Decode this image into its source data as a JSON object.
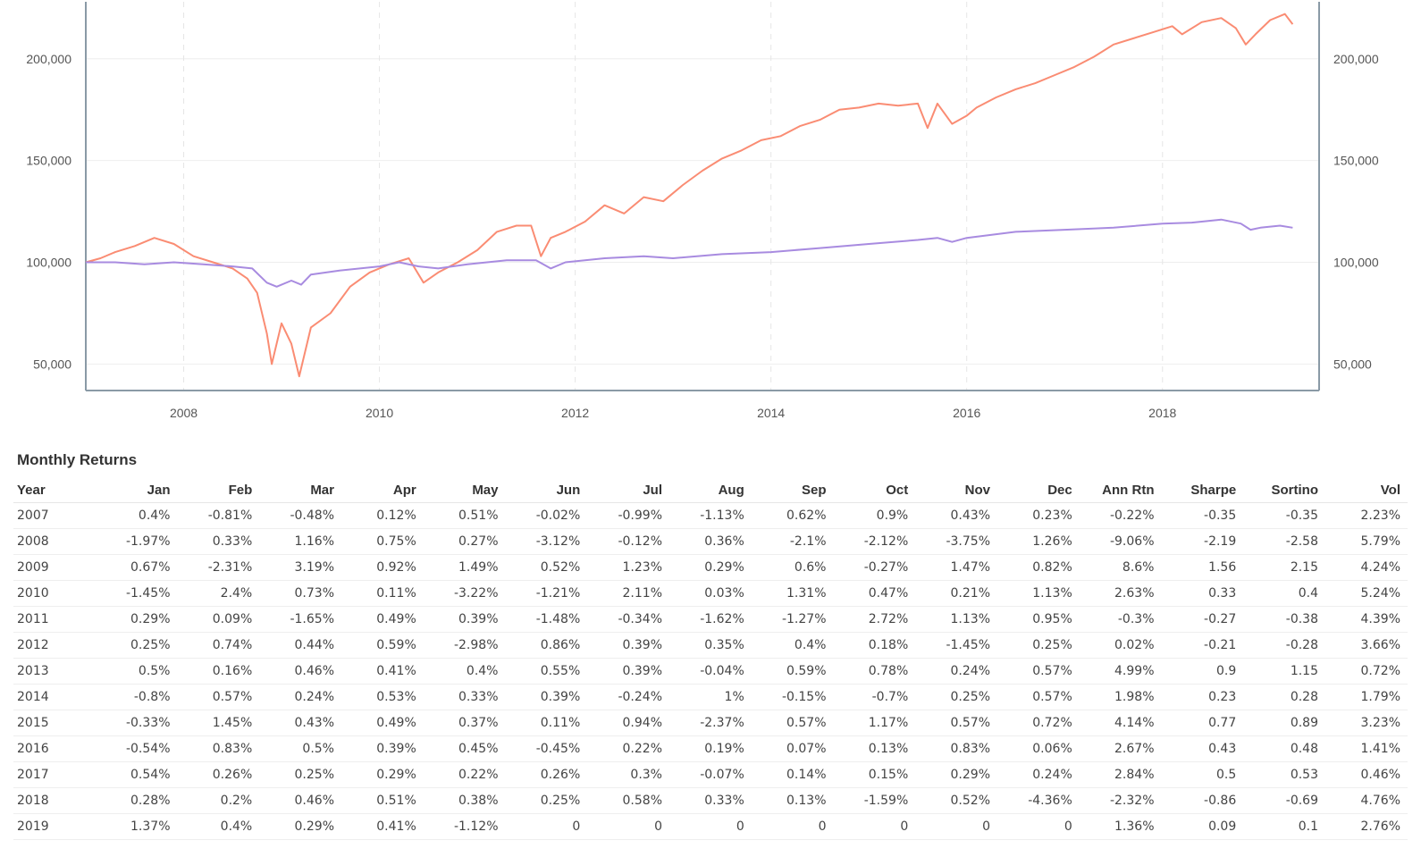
{
  "chart_data": {
    "type": "line",
    "x_ticks": [
      "2008",
      "2010",
      "2012",
      "2014",
      "2016",
      "2018"
    ],
    "y_ticks_left": [
      "50,000",
      "100,000",
      "150,000",
      "200,000"
    ],
    "y_ticks_right": [
      "50,000",
      "100,000",
      "150,000",
      "200,000"
    ],
    "xlim": [
      2007.0,
      2019.6
    ],
    "ylim": [
      37000,
      228000
    ],
    "grid": true,
    "series": [
      {
        "color": "#fa8c73",
        "x": [
          2007.0,
          2007.15,
          2007.3,
          2007.5,
          2007.7,
          2007.9,
          2008.1,
          2008.3,
          2008.5,
          2008.65,
          2008.75,
          2008.85,
          2008.9,
          2009.0,
          2009.1,
          2009.18,
          2009.3,
          2009.5,
          2009.7,
          2009.9,
          2010.1,
          2010.3,
          2010.45,
          2010.6,
          2010.8,
          2011.0,
          2011.2,
          2011.4,
          2011.55,
          2011.65,
          2011.75,
          2011.9,
          2012.1,
          2012.3,
          2012.5,
          2012.7,
          2012.9,
          2013.1,
          2013.3,
          2013.5,
          2013.7,
          2013.9,
          2014.1,
          2014.3,
          2014.5,
          2014.7,
          2014.9,
          2015.1,
          2015.3,
          2015.5,
          2015.6,
          2015.7,
          2015.85,
          2016.0,
          2016.1,
          2016.3,
          2016.5,
          2016.7,
          2016.9,
          2017.1,
          2017.3,
          2017.5,
          2017.7,
          2017.9,
          2018.1,
          2018.2,
          2018.4,
          2018.6,
          2018.75,
          2018.85,
          2018.95,
          2019.1,
          2019.25,
          2019.33
        ],
        "y": [
          100000,
          102000,
          105000,
          108000,
          112000,
          109000,
          103000,
          100000,
          97000,
          92000,
          85000,
          65000,
          50000,
          70000,
          60000,
          44000,
          68000,
          75000,
          88000,
          95000,
          99000,
          102000,
          90000,
          95000,
          100000,
          106000,
          115000,
          118000,
          118000,
          103000,
          112000,
          115000,
          120000,
          128000,
          124000,
          132000,
          130000,
          138000,
          145000,
          151000,
          155000,
          160000,
          162000,
          167000,
          170000,
          175000,
          176000,
          178000,
          177000,
          178000,
          166000,
          178000,
          168000,
          172000,
          176000,
          181000,
          185000,
          188000,
          192000,
          196000,
          201000,
          207000,
          210000,
          213000,
          216000,
          212000,
          218000,
          220000,
          215000,
          207000,
          212000,
          219000,
          222000,
          217000
        ]
      },
      {
        "color": "#a88be0",
        "x": [
          2007.0,
          2007.3,
          2007.6,
          2007.9,
          2008.2,
          2008.5,
          2008.7,
          2008.85,
          2008.95,
          2009.1,
          2009.2,
          2009.3,
          2009.6,
          2010.0,
          2010.2,
          2010.4,
          2010.6,
          2010.9,
          2011.3,
          2011.6,
          2011.75,
          2011.9,
          2012.3,
          2012.7,
          2013.0,
          2013.5,
          2014.0,
          2014.5,
          2015.0,
          2015.5,
          2015.7,
          2015.85,
          2016.0,
          2016.5,
          2017.0,
          2017.5,
          2018.0,
          2018.3,
          2018.6,
          2018.8,
          2018.9,
          2019.0,
          2019.2,
          2019.33
        ],
        "y": [
          100000,
          100000,
          99000,
          100000,
          99000,
          98000,
          97000,
          90000,
          88000,
          91000,
          89000,
          94000,
          96000,
          98000,
          100000,
          98000,
          97000,
          99000,
          101000,
          101000,
          97000,
          100000,
          102000,
          103000,
          102000,
          104000,
          105000,
          107000,
          109000,
          111000,
          112000,
          110000,
          112000,
          115000,
          116000,
          117000,
          119000,
          119500,
          121000,
          119000,
          116000,
          117000,
          118000,
          117000
        ]
      }
    ]
  },
  "returns": {
    "title": "Monthly Returns",
    "columns": [
      "Year",
      "Jan",
      "Feb",
      "Mar",
      "Apr",
      "May",
      "Jun",
      "Jul",
      "Aug",
      "Sep",
      "Oct",
      "Nov",
      "Dec",
      "Ann Rtn",
      "Sharpe",
      "Sortino",
      "Vol"
    ],
    "rows": [
      [
        "2007",
        "0.4%",
        "-0.81%",
        "-0.48%",
        "0.12%",
        "0.51%",
        "-0.02%",
        "-0.99%",
        "-1.13%",
        "0.62%",
        "0.9%",
        "0.43%",
        "0.23%",
        "-0.22%",
        "-0.35",
        "-0.35",
        "2.23%"
      ],
      [
        "2008",
        "-1.97%",
        "0.33%",
        "1.16%",
        "0.75%",
        "0.27%",
        "-3.12%",
        "-0.12%",
        "0.36%",
        "-2.1%",
        "-2.12%",
        "-3.75%",
        "1.26%",
        "-9.06%",
        "-2.19",
        "-2.58",
        "5.79%"
      ],
      [
        "2009",
        "0.67%",
        "-2.31%",
        "3.19%",
        "0.92%",
        "1.49%",
        "0.52%",
        "1.23%",
        "0.29%",
        "0.6%",
        "-0.27%",
        "1.47%",
        "0.82%",
        "8.6%",
        "1.56",
        "2.15",
        "4.24%"
      ],
      [
        "2010",
        "-1.45%",
        "2.4%",
        "0.73%",
        "0.11%",
        "-3.22%",
        "-1.21%",
        "2.11%",
        "0.03%",
        "1.31%",
        "0.47%",
        "0.21%",
        "1.13%",
        "2.63%",
        "0.33",
        "0.4",
        "5.24%"
      ],
      [
        "2011",
        "0.29%",
        "0.09%",
        "-1.65%",
        "0.49%",
        "0.39%",
        "-1.48%",
        "-0.34%",
        "-1.62%",
        "-1.27%",
        "2.72%",
        "1.13%",
        "0.95%",
        "-0.3%",
        "-0.27",
        "-0.38",
        "4.39%"
      ],
      [
        "2012",
        "0.25%",
        "0.74%",
        "0.44%",
        "0.59%",
        "-2.98%",
        "0.86%",
        "0.39%",
        "0.35%",
        "0.4%",
        "0.18%",
        "-1.45%",
        "0.25%",
        "0.02%",
        "-0.21",
        "-0.28",
        "3.66%"
      ],
      [
        "2013",
        "0.5%",
        "0.16%",
        "0.46%",
        "0.41%",
        "0.4%",
        "0.55%",
        "0.39%",
        "-0.04%",
        "0.59%",
        "0.78%",
        "0.24%",
        "0.57%",
        "4.99%",
        "0.9",
        "1.15",
        "0.72%"
      ],
      [
        "2014",
        "-0.8%",
        "0.57%",
        "0.24%",
        "0.53%",
        "0.33%",
        "0.39%",
        "-0.24%",
        "1%",
        "-0.15%",
        "-0.7%",
        "0.25%",
        "0.57%",
        "1.98%",
        "0.23",
        "0.28",
        "1.79%"
      ],
      [
        "2015",
        "-0.33%",
        "1.45%",
        "0.43%",
        "0.49%",
        "0.37%",
        "0.11%",
        "0.94%",
        "-2.37%",
        "0.57%",
        "1.17%",
        "0.57%",
        "0.72%",
        "4.14%",
        "0.77",
        "0.89",
        "3.23%"
      ],
      [
        "2016",
        "-0.54%",
        "0.83%",
        "0.5%",
        "0.39%",
        "0.45%",
        "-0.45%",
        "0.22%",
        "0.19%",
        "0.07%",
        "0.13%",
        "0.83%",
        "0.06%",
        "2.67%",
        "0.43",
        "0.48",
        "1.41%"
      ],
      [
        "2017",
        "0.54%",
        "0.26%",
        "0.25%",
        "0.29%",
        "0.22%",
        "0.26%",
        "0.3%",
        "-0.07%",
        "0.14%",
        "0.15%",
        "0.29%",
        "0.24%",
        "2.84%",
        "0.5",
        "0.53",
        "0.46%"
      ],
      [
        "2018",
        "0.28%",
        "0.2%",
        "0.46%",
        "0.51%",
        "0.38%",
        "0.25%",
        "0.58%",
        "0.33%",
        "0.13%",
        "-1.59%",
        "0.52%",
        "-4.36%",
        "-2.32%",
        "-0.86",
        "-0.69",
        "4.76%"
      ],
      [
        "2019",
        "1.37%",
        "0.4%",
        "0.29%",
        "0.41%",
        "-1.12%",
        "0",
        "0",
        "0",
        "0",
        "0",
        "0",
        "0",
        "1.36%",
        "0.09",
        "0.1",
        "2.76%"
      ]
    ]
  }
}
